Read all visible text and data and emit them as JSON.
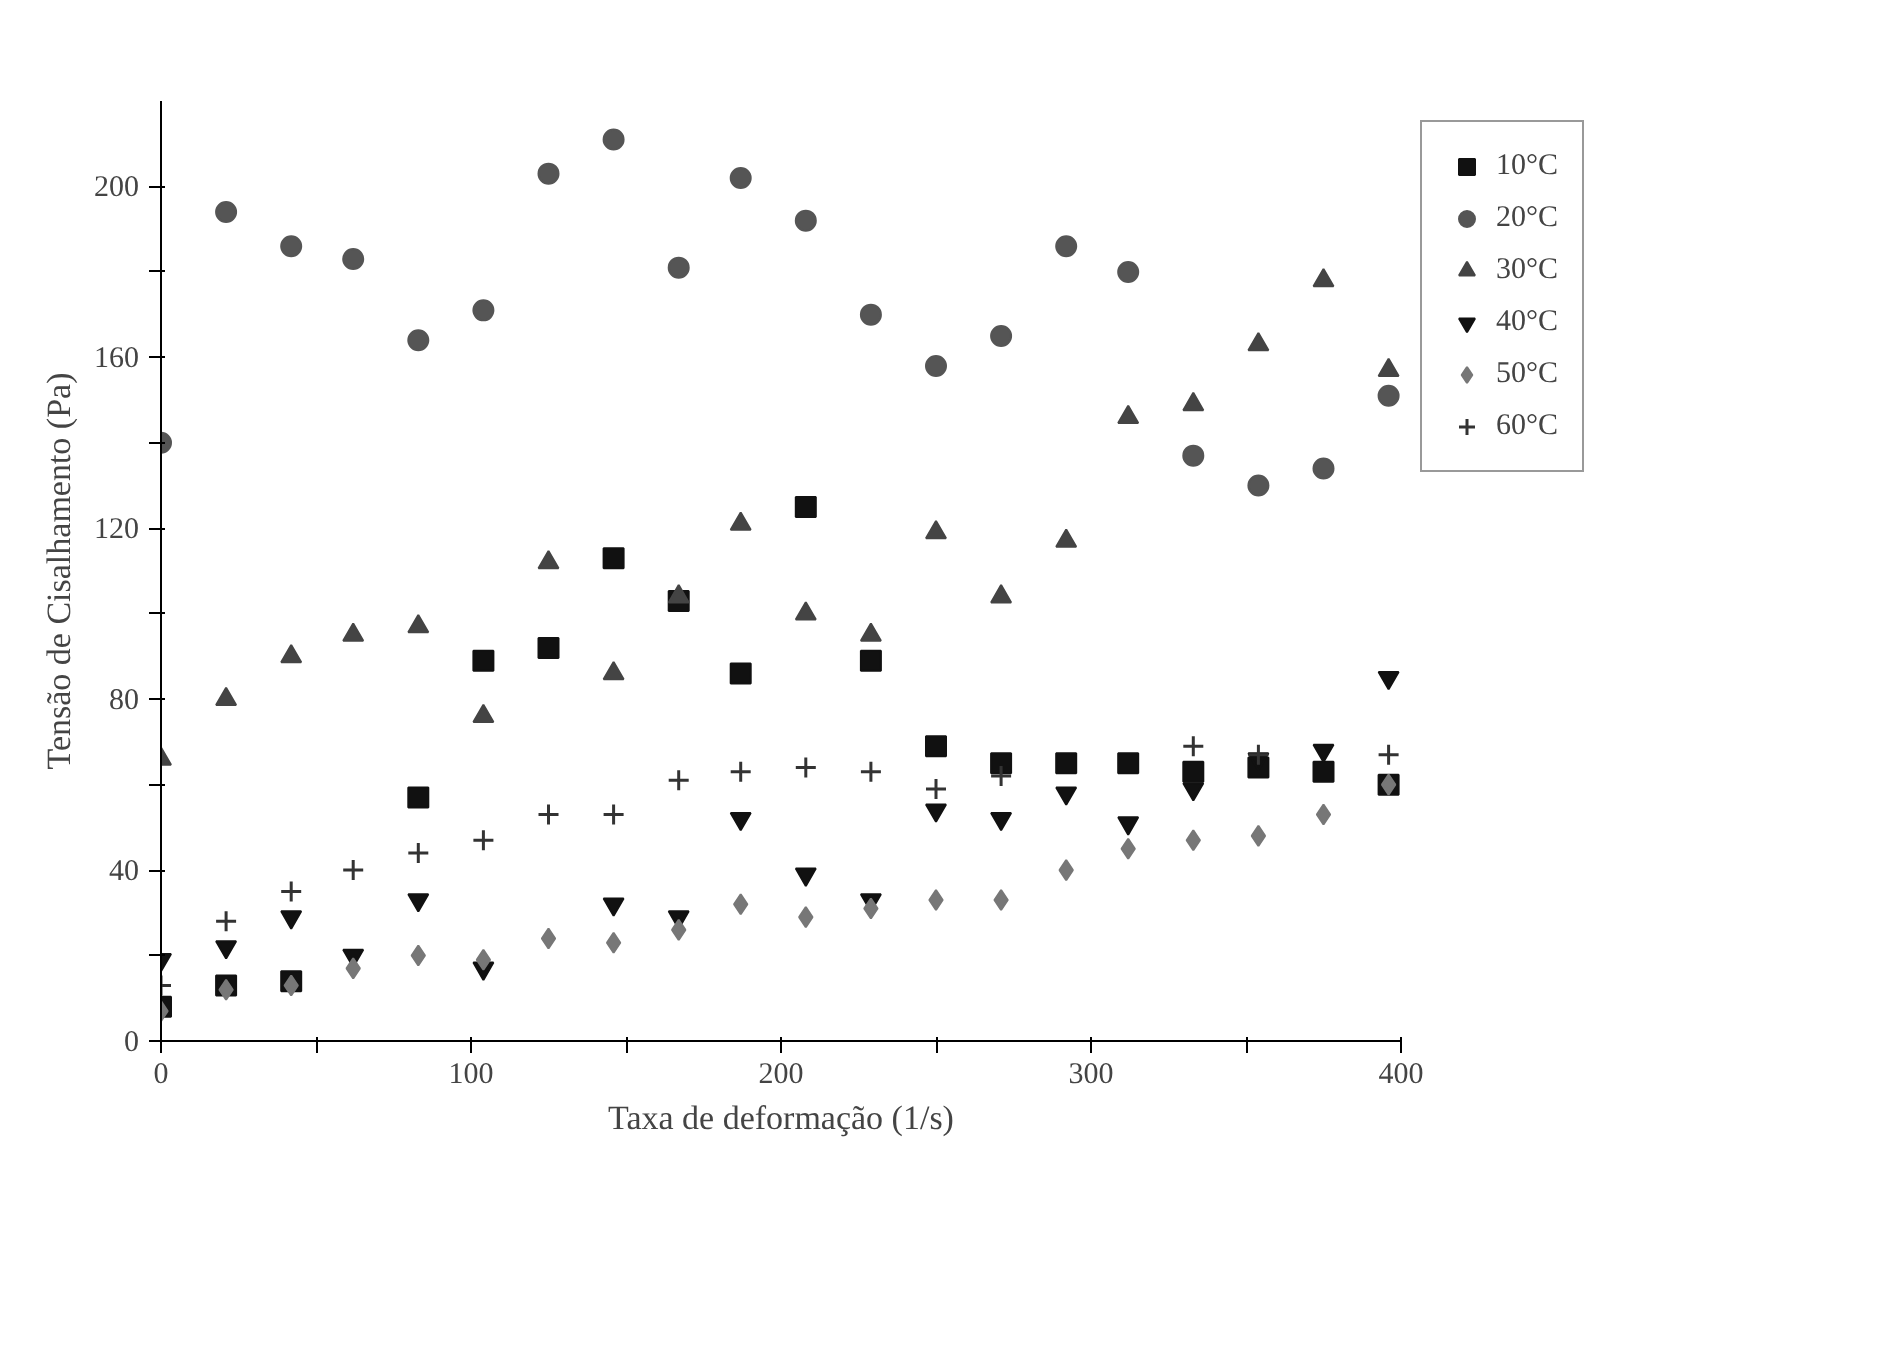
{
  "chart_data": {
    "type": "scatter",
    "xlabel": "Taxa de deformação (1/s)",
    "ylabel": "Tensão de Cisalhamento (Pa)",
    "x": [
      0,
      21,
      42,
      62,
      83,
      104,
      125,
      146,
      167,
      187,
      208,
      229,
      250,
      271,
      292,
      312,
      333,
      354,
      375,
      396
    ],
    "series": [
      {
        "name": "10°C",
        "color": "#111111",
        "marker": "square",
        "values": [
          8,
          13,
          14,
          null,
          57,
          89,
          92,
          113,
          103,
          86,
          125,
          89,
          69,
          65,
          65,
          65,
          63,
          64,
          63,
          60
        ]
      },
      {
        "name": "20°C",
        "color": "#555555",
        "marker": "circle",
        "values": [
          140,
          194,
          186,
          183,
          164,
          171,
          203,
          211,
          181,
          202,
          192,
          170,
          158,
          165,
          186,
          180,
          137,
          130,
          134,
          151
        ]
      },
      {
        "name": "30°C",
        "color": "#444444",
        "marker": "triangle",
        "values": [
          66,
          80,
          90,
          95,
          97,
          76,
          112,
          86,
          104,
          121,
          100,
          95,
          119,
          104,
          117,
          146,
          149,
          163,
          178,
          157
        ]
      },
      {
        "name": "40°C",
        "color": "#111111",
        "values": [
          19,
          22,
          29,
          20,
          33,
          17,
          null,
          32,
          29,
          52,
          39,
          33,
          54,
          52,
          58,
          51,
          59,
          66,
          68,
          85
        ]
      },
      {
        "name": "50°C",
        "color": "#777777",
        "marker": "diamond",
        "values": [
          7,
          12,
          13,
          17,
          20,
          19,
          24,
          23,
          26,
          32,
          29,
          31,
          33,
          33,
          40,
          45,
          47,
          48,
          53,
          60
        ]
      },
      {
        "name": "60°C",
        "color": "#333333",
        "marker": "cross",
        "values": [
          13,
          28,
          35,
          40,
          44,
          47,
          53,
          53,
          61,
          63,
          64,
          63,
          59,
          62,
          null,
          null,
          69,
          67,
          null,
          67
        ]
      }
    ],
    "xlim": [
      0,
      400
    ],
    "ylim": [
      0,
      220
    ],
    "xticks": [
      0,
      {
        "value": 50,
        "label": null
      },
      100,
      {
        "value": 150,
        "label": null
      },
      200,
      {
        "value": 250,
        "label": null
      },
      300,
      {
        "value": 350,
        "label": null
      },
      400
    ],
    "yticks": [
      0,
      {
        "value": 20,
        "label": null
      },
      40,
      {
        "value": 60,
        "label": null
      },
      80,
      {
        "value": 100,
        "label": null
      },
      120,
      {
        "value": 140,
        "label": null
      },
      160,
      {
        "value": 180,
        "label": null
      },
      200
    ],
    "grid": false,
    "legend": "top right"
  }
}
